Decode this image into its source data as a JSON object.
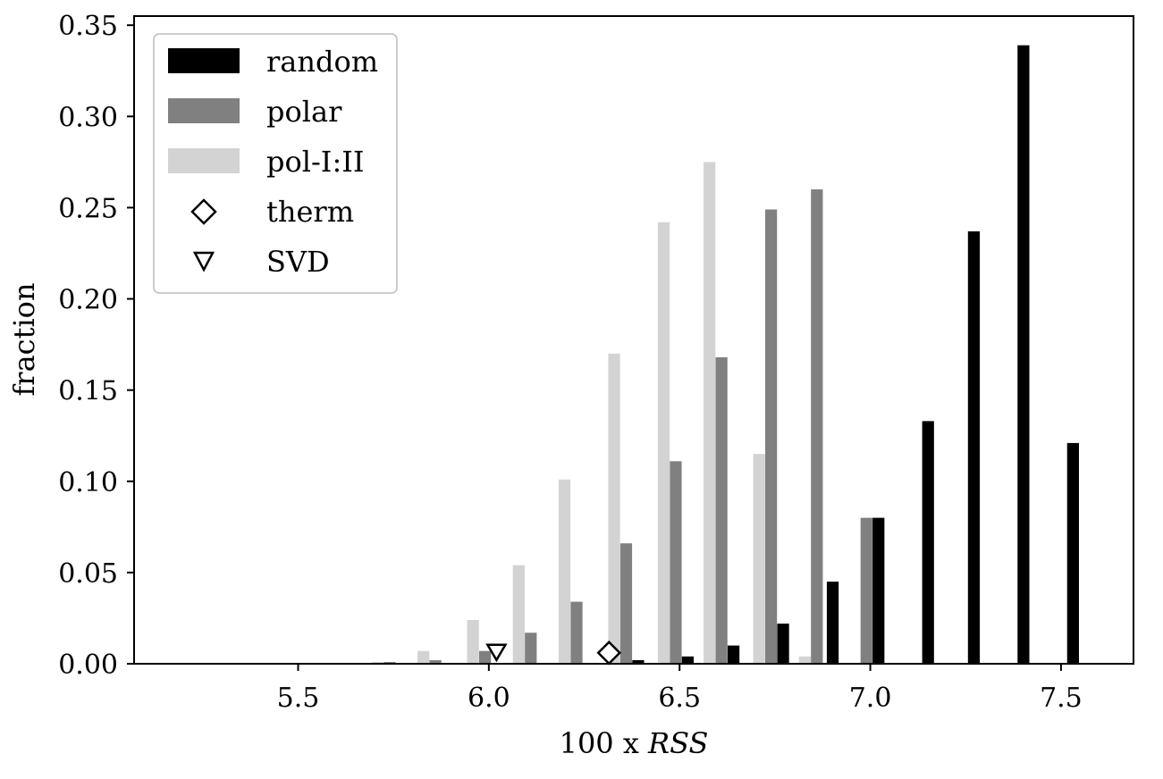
{
  "chart_data": {
    "type": "bar",
    "xlabel_prefix": "100 x ",
    "xlabel_var": "RSS",
    "ylabel": "fraction",
    "xlim": [
      5.07,
      7.69
    ],
    "ylim": [
      0.0,
      0.355
    ],
    "xticks": [
      5.5,
      6.0,
      6.5,
      7.0,
      7.5
    ],
    "xtick_labels": [
      "5.5",
      "6.0",
      "6.5",
      "7.0",
      "7.5"
    ],
    "yticks": [
      0.0,
      0.05,
      0.1,
      0.15,
      0.2,
      0.25,
      0.3,
      0.35
    ],
    "ytick_labels": [
      "0.00",
      "0.05",
      "0.10",
      "0.15",
      "0.20",
      "0.25",
      "0.30",
      "0.35"
    ],
    "bar_width": 0.031,
    "grid": false,
    "legend_position": "top-left",
    "series": [
      {
        "name": "random",
        "color": "#000000",
        "offset": 0.0315,
        "x": [
          5.86,
          6.0,
          6.11,
          6.23,
          6.36,
          6.49,
          6.61,
          6.74,
          6.87,
          6.99,
          7.12,
          7.24,
          7.37,
          7.5
        ],
        "values": [
          0.0,
          0.0,
          0.0,
          0.0,
          0.002,
          0.004,
          0.01,
          0.022,
          0.045,
          0.08,
          0.133,
          0.237,
          0.339,
          0.121
        ]
      },
      {
        "name": "polar",
        "color": "#808080",
        "offset": 0.0,
        "x": [
          5.74,
          5.86,
          5.99,
          6.11,
          6.23,
          6.36,
          6.49,
          6.61,
          6.74,
          6.86,
          6.99
        ],
        "values": [
          0.001,
          0.002,
          0.007,
          0.017,
          0.034,
          0.066,
          0.111,
          0.168,
          0.249,
          0.26,
          0.08
        ]
      },
      {
        "name": "pol-I:II",
        "color": "#d3d3d3",
        "offset": -0.0315,
        "x": [
          5.74,
          5.86,
          5.99,
          6.11,
          6.23,
          6.36,
          6.49,
          6.61,
          6.74,
          6.86
        ],
        "values": [
          0.001,
          0.007,
          0.024,
          0.054,
          0.101,
          0.17,
          0.242,
          0.275,
          0.115,
          0.004
        ]
      }
    ],
    "markers": [
      {
        "name": "therm",
        "shape": "diamond",
        "x": 6.315,
        "y": 0.006
      },
      {
        "name": "SVD",
        "shape": "triangle-down",
        "x": 6.02,
        "y": 0.006
      }
    ]
  }
}
